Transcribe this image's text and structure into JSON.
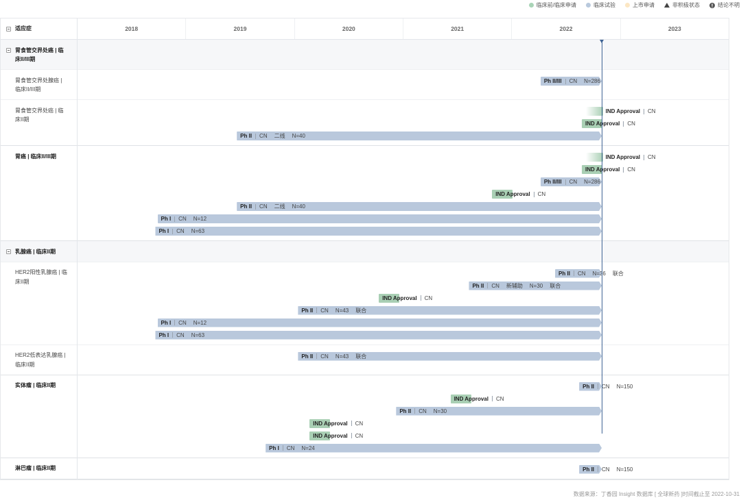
{
  "legend": {
    "items": [
      {
        "label": "临床前/临床申请",
        "icon": "dot",
        "color": "#a9d4b7"
      },
      {
        "label": "临床试验",
        "icon": "dot",
        "color": "#b9c9dd"
      },
      {
        "label": "上市申请",
        "icon": "dot",
        "color": "#fce7c4"
      },
      {
        "label": "非积极状态",
        "icon": "triangle-icon",
        "color": "#444444"
      },
      {
        "label": "结论不明",
        "icon": "info-icon",
        "color": "#555555"
      }
    ]
  },
  "table": {
    "header_label": "适应症"
  },
  "colors": {
    "trial_bar": "#b9c8dc",
    "ind_marker": "#a9cfb4",
    "today_line": "#3e6394",
    "group_row_bg": "#f6f7f9"
  },
  "chart_data": {
    "type": "bar",
    "x_axis": {
      "ticks": [
        "2018",
        "2019",
        "2020",
        "2021",
        "2022",
        "2023"
      ],
      "range": [
        "2018-01-01",
        "2024-01-01"
      ]
    },
    "today_marker": "2022-10-31",
    "rows": [
      {
        "label": "胃食管交界处癌 | 临床II/III期",
        "bold": true,
        "collapsible": true,
        "bars": []
      },
      {
        "label": "胃食管交界处腺癌 | 临床II/III期",
        "bold": false,
        "collapsible": false,
        "bars": [
          {
            "milestone": false,
            "phase": "Ph II/III",
            "region": "CN",
            "details": [
              "N=286"
            ],
            "start": "2022-04-08",
            "end": "2022-10-31"
          }
        ]
      },
      {
        "label": "胃食管交界处癌 | 临床II期",
        "bold": false,
        "collapsible": false,
        "bars": [
          {
            "milestone": true,
            "faded": true,
            "phase": "IND Approval",
            "region": "CN",
            "date": "2022-09-07"
          },
          {
            "milestone": true,
            "phase": "IND Approval",
            "region": "CN",
            "date": "2022-08-25"
          },
          {
            "milestone": false,
            "phase": "Ph II",
            "region": "CN",
            "details": [
              "二线",
              "N=40"
            ],
            "start": "2019-06-21",
            "end": "2022-10-31"
          }
        ]
      },
      {
        "label": "胃癌 | 临床II/III期",
        "bold": true,
        "collapsible": false,
        "bars": [
          {
            "milestone": true,
            "faded": true,
            "phase": "IND Approval",
            "region": "CN",
            "date": "2022-09-07"
          },
          {
            "milestone": true,
            "phase": "IND Approval",
            "region": "CN",
            "date": "2022-08-25"
          },
          {
            "milestone": false,
            "phase": "Ph II/III",
            "region": "CN",
            "details": [
              "N=286"
            ],
            "start": "2022-04-08",
            "end": "2022-10-31"
          },
          {
            "milestone": true,
            "phase": "IND Approval",
            "region": "CN",
            "date": "2021-10-27"
          },
          {
            "milestone": false,
            "phase": "Ph II",
            "region": "CN",
            "details": [
              "二线",
              "N=40"
            ],
            "start": "2019-06-21",
            "end": "2022-10-31"
          },
          {
            "milestone": false,
            "phase": "Ph I",
            "region": "CN",
            "details": [
              "N=12"
            ],
            "start": "2018-09-27",
            "end": "2022-10-31"
          },
          {
            "milestone": false,
            "phase": "Ph I",
            "region": "CN",
            "details": [
              "N=63"
            ],
            "start": "2018-09-20",
            "end": "2022-10-31"
          }
        ]
      },
      {
        "label": "乳腺癌 | 临床II期",
        "bold": true,
        "collapsible": true,
        "bars": []
      },
      {
        "label": "HER2阳性乳腺癌 | 临床II期",
        "bold": false,
        "collapsible": false,
        "bars": [
          {
            "milestone": false,
            "phase": "Ph II",
            "region": "CN",
            "details": [
              "N=36",
              "联合"
            ],
            "start": "2022-05-27",
            "end": "2022-10-31"
          },
          {
            "milestone": false,
            "phase": "Ph II",
            "region": "CN",
            "details": [
              "新辅助",
              "N=30",
              "联合"
            ],
            "start": "2021-08-10",
            "end": "2022-10-31"
          },
          {
            "milestone": true,
            "phase": "IND Approval",
            "region": "CN",
            "date": "2020-10-11"
          },
          {
            "milestone": false,
            "phase": "Ph II",
            "region": "CN",
            "details": [
              "N=43",
              "联合"
            ],
            "start": "2020-01-13",
            "end": "2022-10-31"
          },
          {
            "milestone": false,
            "phase": "Ph I",
            "region": "CN",
            "details": [
              "N=12"
            ],
            "start": "2018-09-27",
            "end": "2022-10-31"
          },
          {
            "milestone": false,
            "phase": "Ph I",
            "region": "CN",
            "details": [
              "N=63"
            ],
            "start": "2018-09-20",
            "end": "2022-10-31"
          }
        ]
      },
      {
        "label": "HER2低表达乳腺癌 | 临床II期",
        "bold": false,
        "collapsible": false,
        "bars": [
          {
            "milestone": false,
            "phase": "Ph II",
            "region": "CN",
            "details": [
              "N=43",
              "联合"
            ],
            "start": "2020-01-13",
            "end": "2022-10-31"
          }
        ]
      },
      {
        "label": "实体瘤 | 临床II期",
        "bold": true,
        "collapsible": false,
        "bars": [
          {
            "milestone": false,
            "phase": "Ph II",
            "region": "CN",
            "details": [
              "N=150"
            ],
            "start": "2022-08-16",
            "end": "2022-10-31"
          },
          {
            "milestone": true,
            "phase": "IND Approval",
            "region": "CN",
            "date": "2021-06-09"
          },
          {
            "milestone": false,
            "phase": "Ph II",
            "region": "CN",
            "details": [
              "N=30"
            ],
            "start": "2020-12-08",
            "end": "2022-10-31"
          },
          {
            "milestone": true,
            "phase": "IND Approval",
            "region": "CN",
            "date": "2020-02-21"
          },
          {
            "milestone": true,
            "phase": "IND Approval",
            "region": "CN",
            "date": "2020-02-21"
          },
          {
            "milestone": false,
            "phase": "Ph I",
            "region": "CN",
            "details": [
              "N=24"
            ],
            "start": "2019-09-26",
            "end": "2022-10-31"
          }
        ]
      },
      {
        "label": "淋巴瘤 | 临床II期",
        "bold": true,
        "collapsible": false,
        "bars": [
          {
            "milestone": false,
            "phase": "Ph II",
            "region": "CN",
            "details": [
              "N=150"
            ],
            "start": "2022-08-16",
            "end": "2022-10-31"
          }
        ]
      }
    ]
  },
  "footer": {
    "source": "数据来源：丁香园 Insight 数据库 [ 全球新药 ]时间截止至 2022-10-31"
  }
}
